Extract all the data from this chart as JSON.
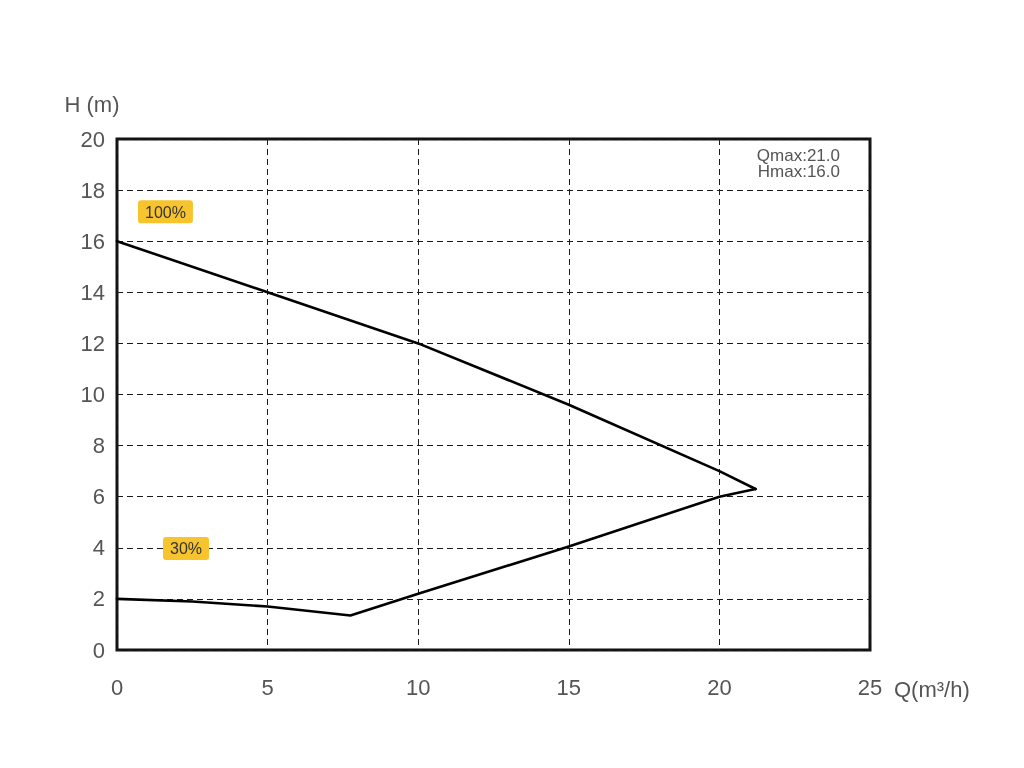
{
  "chart_data": {
    "type": "line",
    "xlabel": "Q(m³/h)",
    "ylabel": "H (m)",
    "annotations": [
      "Qmax:21.0",
      "Hmax:16.0"
    ],
    "series": [
      {
        "name": "100%",
        "color": "#000000",
        "x": [
          0,
          5,
          10,
          15,
          20,
          21.2
        ],
        "values": [
          16,
          14,
          12,
          9.6,
          7.0,
          6.3
        ]
      },
      {
        "name": "30%",
        "color": "#000000",
        "x": [
          0,
          2.5,
          5,
          7.75,
          10,
          15,
          20,
          21.2
        ],
        "values": [
          2.0,
          1.9,
          1.7,
          1.35,
          2.2,
          4.05,
          6.0,
          6.3
        ]
      }
    ],
    "xlim": [
      0,
      25
    ],
    "xticks": [
      0,
      5,
      10,
      15,
      20,
      25
    ],
    "ylim": [
      0,
      20
    ],
    "yticks": [
      0,
      2,
      4,
      6,
      8,
      10,
      12,
      14,
      16,
      18,
      20
    ],
    "grid": true,
    "marker": "none",
    "line_style": "solid"
  }
}
